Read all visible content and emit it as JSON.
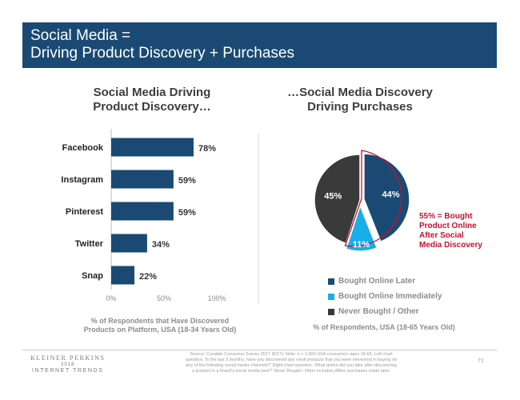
{
  "header": {
    "title_line1": "Social Media =",
    "title_line2": "Driving Product Discovery + Purchases"
  },
  "left_panel": {
    "title_line1": "Social Media Driving",
    "title_line2": "Product Discovery…",
    "caption_line1": "% of Respondents that Have Discovered",
    "caption_line2": "Products on Platform, USA (18-34 Years Old)"
  },
  "right_panel": {
    "title_line1": "…Social Media Discovery",
    "title_line2": "Driving Purchases",
    "caption": "% of Respondents, USA (18-65 Years Old)",
    "callout_line1": "55% = Bought",
    "callout_line2": "Product Online",
    "callout_line3": "After Social",
    "callout_line4": "Media Discovery"
  },
  "chart_data": [
    {
      "type": "bar",
      "orientation": "horizontal",
      "categories": [
        "Facebook",
        "Instagram",
        "Pinterest",
        "Twitter",
        "Snap"
      ],
      "values": [
        78,
        59,
        59,
        34,
        22
      ],
      "value_labels": [
        "78%",
        "59%",
        "59%",
        "34%",
        "22%"
      ],
      "xlim": [
        0,
        100
      ],
      "xticks": [
        "0%",
        "50%",
        "100%"
      ],
      "color": "#1a4a73"
    },
    {
      "type": "pie",
      "slices": [
        {
          "name": "Bought Online Later",
          "value": 44,
          "label": "44%",
          "color": "#1a4a73"
        },
        {
          "name": "Bought Online Immediately",
          "value": 11,
          "label": "11%",
          "color": "#19aee8"
        },
        {
          "name": "Never Bought / Other",
          "value": 45,
          "label": "45%",
          "color": "#3a3a3a"
        }
      ],
      "legend_position": "bottom",
      "highlight_color": "#c8102e"
    }
  ],
  "footer": {
    "logo_line1": "KLEINER PERKINS",
    "logo_line2": "2018",
    "logo_line3": "INTERNET TRENDS",
    "source_line1": "Source: Curalate Consumer Survey 2017 (8/17). Note: n = 1,000 USA consumers ages 18-65. Left chart",
    "source_line2": "question: 'In the last 3 months, have you discovered any retail products that you were interested in buying on",
    "source_line3": "any of the following social media channels?' Right chart question: 'What action did you take after discovering",
    "source_line4": "a product in a brand's social media post?' Never Bought / Other includes offline purchases made later.",
    "page_number": "71"
  }
}
